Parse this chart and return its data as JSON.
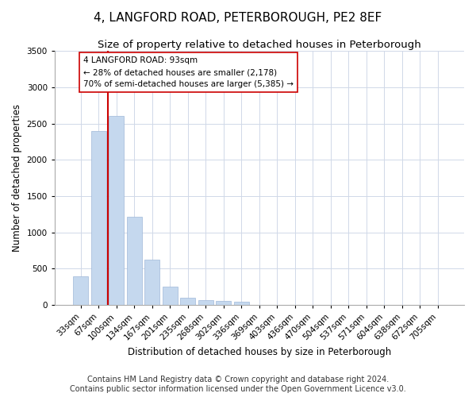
{
  "title": "4, LANGFORD ROAD, PETERBOROUGH, PE2 8EF",
  "subtitle": "Size of property relative to detached houses in Peterborough",
  "xlabel": "Distribution of detached houses by size in Peterborough",
  "ylabel": "Number of detached properties",
  "footer1": "Contains HM Land Registry data © Crown copyright and database right 2024.",
  "footer2": "Contains public sector information licensed under the Open Government Licence v3.0.",
  "categories": [
    "33sqm",
    "67sqm",
    "100sqm",
    "134sqm",
    "167sqm",
    "201sqm",
    "235sqm",
    "268sqm",
    "302sqm",
    "336sqm",
    "369sqm",
    "403sqm",
    "436sqm",
    "470sqm",
    "504sqm",
    "537sqm",
    "571sqm",
    "604sqm",
    "638sqm",
    "672sqm",
    "705sqm"
  ],
  "values": [
    400,
    2400,
    2600,
    1220,
    620,
    250,
    100,
    70,
    60,
    50,
    0,
    0,
    0,
    0,
    0,
    0,
    0,
    0,
    0,
    0,
    0
  ],
  "bar_color": "#c5d8ee",
  "bar_edge_color": "#a0b8d8",
  "vline_x": 1.5,
  "vline_color": "#cc0000",
  "annotation_text": "4 LANGFORD ROAD: 93sqm\n← 28% of detached houses are smaller (2,178)\n70% of semi-detached houses are larger (5,385) →",
  "annotation_box_color": "#ffffff",
  "annotation_box_edge": "#cc0000",
  "ylim": [
    0,
    3500
  ],
  "yticks": [
    0,
    500,
    1000,
    1500,
    2000,
    2500,
    3000,
    3500
  ],
  "bg_color": "#ffffff",
  "plot_bg_color": "#ffffff",
  "title_fontsize": 11,
  "subtitle_fontsize": 9.5,
  "axis_label_fontsize": 8.5,
  "tick_fontsize": 7.5,
  "footer_fontsize": 7
}
